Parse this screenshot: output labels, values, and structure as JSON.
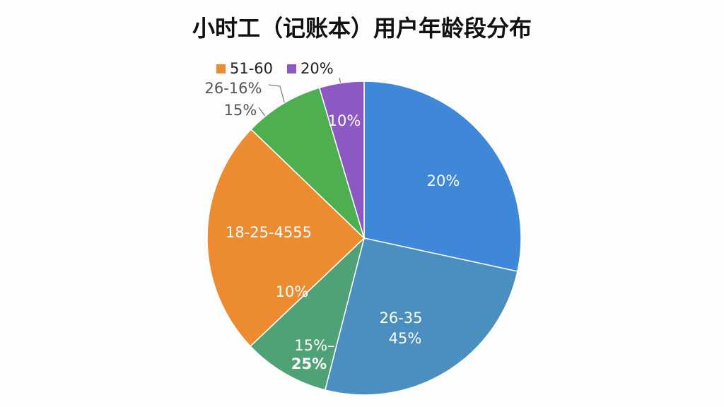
{
  "chart_data": {
    "type": "pie",
    "title": "小时工（记账本）用户年龄段分布",
    "categories": [
      null,
      null,
      null,
      null,
      null,
      null
    ],
    "values": [
      28.4,
      25.6,
      8.9,
      24.3,
      8.2,
      4.6
    ],
    "colors": [
      "#3f87d8",
      "#4a8fc0",
      "#4fa276",
      "#ec8b30",
      "#4daf4f",
      "#8d58c2"
    ],
    "legend": [
      {
        "label": "51-60",
        "color": "#ec8b30"
      },
      {
        "label": "20%",
        "color": "#8d58c2"
      }
    ],
    "annotations": [
      "20%",
      "26-35",
      "45%",
      "15%–",
      "25%",
      "18-25-4555",
      "10%",
      "10%",
      "26-16%",
      "15%"
    ]
  }
}
